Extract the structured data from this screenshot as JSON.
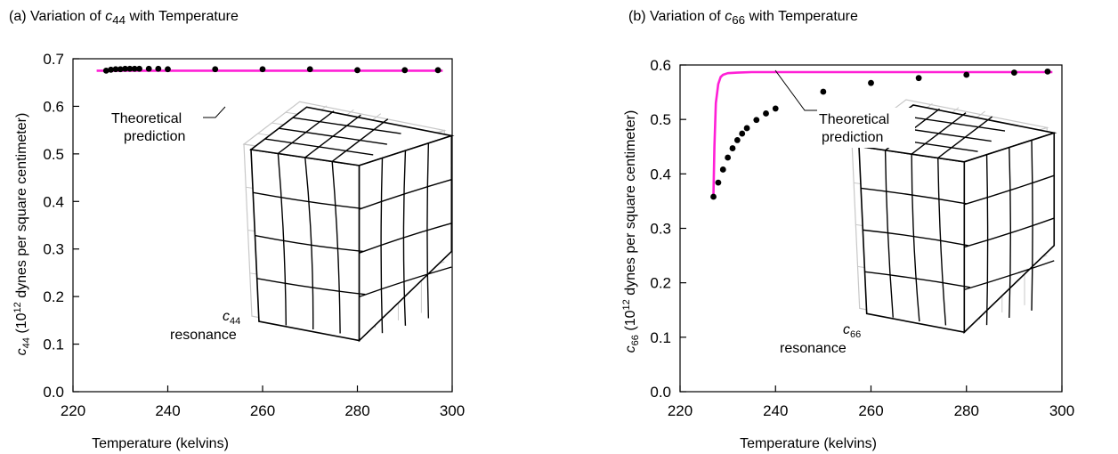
{
  "colors": {
    "theory": "#ff1fd6",
    "points": "#000000",
    "cube_front": "#000000",
    "cube_ghost": "#c8c8c8"
  },
  "chart_data": [
    {
      "type": "scatter",
      "title": {
        "prefix": "(a)  Variation of ",
        "sym": "c",
        "sub": "44",
        "suffix": " with Temperature"
      },
      "xlabel": "Temperature (kelvins)",
      "ylabel": {
        "sym": "c",
        "sub": "44",
        "pre": " (10",
        "sup": "12",
        "post": " dynes per square centimeter)"
      },
      "xlim": [
        220,
        300
      ],
      "ylim": [
        0.0,
        0.7
      ],
      "xticks": [
        "220",
        "240",
        "260",
        "280",
        "300"
      ],
      "yticks": [
        "0.0",
        "0.1",
        "0.2",
        "0.3",
        "0.4",
        "0.5",
        "0.6",
        "0.7"
      ],
      "series": [
        {
          "kind": "measured",
          "x": [
            227,
            228,
            229,
            230,
            231,
            232,
            233,
            234,
            236,
            238,
            240,
            250,
            260,
            270,
            280,
            290,
            297
          ],
          "y": [
            0.675,
            0.677,
            0.678,
            0.678,
            0.679,
            0.679,
            0.679,
            0.679,
            0.679,
            0.679,
            0.678,
            0.678,
            0.678,
            0.678,
            0.676,
            0.676,
            0.676
          ]
        },
        {
          "kind": "theory",
          "x": [
            225,
            298
          ],
          "y": [
            0.675,
            0.675
          ]
        }
      ],
      "annotations": {
        "theory_label": [
          "Theoretical",
          "prediction"
        ],
        "resonance": {
          "sym": "c",
          "sub": "44",
          "word": "resonance"
        }
      }
    },
    {
      "type": "scatter",
      "title": {
        "prefix": "(b)  Variation of ",
        "sym": "c",
        "sub": "66",
        "suffix": " with Temperature"
      },
      "xlabel": "Temperature (kelvins)",
      "ylabel": {
        "sym": "c",
        "sub": "66",
        "pre": " (10",
        "sup": "12",
        "post": " dynes per square centimeter)"
      },
      "xlim": [
        220,
        300
      ],
      "ylim": [
        0.0,
        0.6
      ],
      "xticks": [
        "220",
        "240",
        "260",
        "280",
        "300"
      ],
      "yticks": [
        "0.0",
        "0.1",
        "0.2",
        "0.3",
        "0.4",
        "0.5",
        "0.6"
      ],
      "series": [
        {
          "kind": "measured",
          "x": [
            227,
            228,
            229,
            230,
            231,
            232,
            233,
            234,
            236,
            238,
            240,
            250,
            260,
            270,
            280,
            290,
            297
          ],
          "y": [
            0.358,
            0.384,
            0.408,
            0.43,
            0.447,
            0.462,
            0.474,
            0.484,
            0.499,
            0.511,
            0.52,
            0.551,
            0.567,
            0.576,
            0.582,
            0.586,
            0.588
          ]
        },
        {
          "kind": "theory",
          "x": [
            227,
            227.2,
            227.5,
            228,
            228.5,
            229,
            230,
            232,
            235,
            240,
            250,
            298
          ],
          "y": [
            0.36,
            0.45,
            0.53,
            0.565,
            0.578,
            0.582,
            0.585,
            0.586,
            0.587,
            0.587,
            0.587,
            0.587
          ]
        }
      ],
      "annotations": {
        "theory_label": [
          "Theoretical",
          "prediction"
        ],
        "resonance": {
          "sym": "c",
          "sub": "66",
          "word": "resonance"
        }
      }
    }
  ]
}
